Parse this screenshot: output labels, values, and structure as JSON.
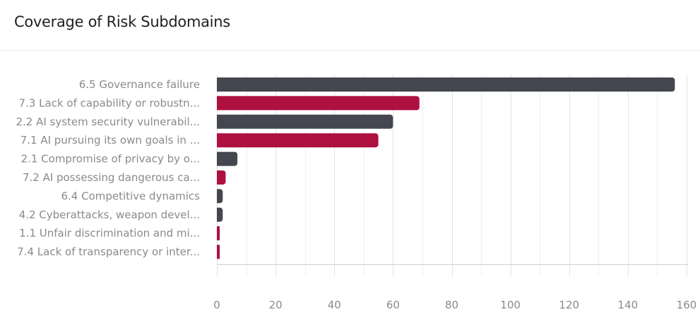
{
  "card": {
    "title": "Coverage of Risk Subdomains"
  },
  "colors": {
    "series_dark": "#444650",
    "series_accent": "#ae1040",
    "grid": "#e3e3e3",
    "axis": "#cfcfcf",
    "label": "#8a8a8a"
  },
  "chart_data": {
    "type": "bar",
    "orientation": "horizontal",
    "title": "Coverage of Risk Subdomains",
    "xlabel": "",
    "ylabel": "",
    "xlim": [
      0,
      160
    ],
    "x_ticks": [
      0,
      20,
      40,
      60,
      80,
      100,
      120,
      140,
      160
    ],
    "grid": true,
    "categories": [
      "6.5 Governance failure",
      "7.3 Lack of capability or robustn...",
      "2.2 AI system security vulnerabil...",
      "7.1 AI pursuing its own goals in ...",
      "2.1 Compromise of privacy by o...",
      "7.2 AI possessing dangerous ca...",
      "6.4 Competitive dynamics",
      "4.2 Cyberattacks, weapon devel...",
      "1.1 Unfair discrimination and mi...",
      "7.4 Lack of transparency or inter..."
    ],
    "values": [
      156,
      69,
      60,
      55,
      7,
      3,
      2,
      2,
      1,
      1
    ],
    "bar_colors": [
      "dark",
      "accent",
      "dark",
      "accent",
      "dark",
      "accent",
      "dark",
      "dark",
      "accent",
      "accent"
    ]
  }
}
